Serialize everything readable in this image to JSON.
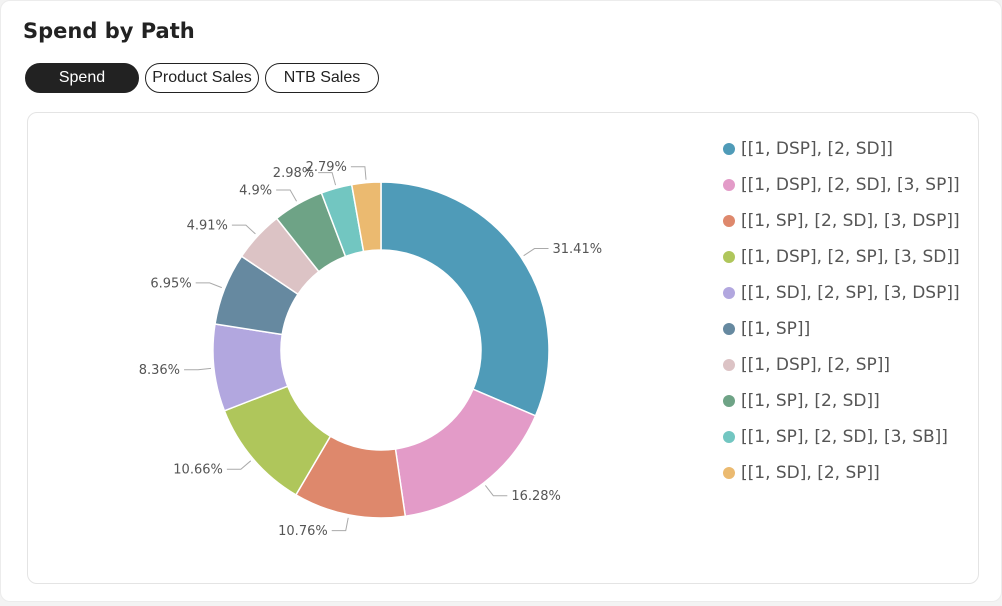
{
  "title": "Spend by Path",
  "tabs": [
    {
      "label": "Spend",
      "active": true
    },
    {
      "label": "Product Sales",
      "active": false
    },
    {
      "label": "NTB Sales",
      "active": false
    }
  ],
  "chart_data": {
    "type": "pie",
    "style": "donut",
    "title": "",
    "legend_position": "right",
    "categories": [
      "[[1, DSP], [2, SD]]",
      "[[1, DSP], [2, SD], [3, SP]]",
      "[[1, SP], [2, SD], [3, DSP]]",
      "[[1, DSP], [2, SP], [3, SD]]",
      "[[1, SD], [2, SP], [3, DSP]]",
      "[[1, SP]]",
      "[[1, DSP], [2, SP]]",
      "[[1, SP], [2, SD]]",
      "[[1, SP], [2, SD], [3, SB]]",
      "[[1, SD], [2, SP]]"
    ],
    "values": [
      31.41,
      16.28,
      10.76,
      10.66,
      8.36,
      6.95,
      4.91,
      4.9,
      2.98,
      2.79
    ],
    "labels": [
      "31.41%",
      "16.28%",
      "10.76%",
      "10.66%",
      "8.36%",
      "6.95%",
      "4.91%",
      "4.9%",
      "2.98%",
      "2.79%"
    ],
    "colors": [
      "#4f9bb8",
      "#e39bc8",
      "#de886c",
      "#afc65b",
      "#b2a7df",
      "#6689a0",
      "#dcc3c5",
      "#6ea386",
      "#72c6c1",
      "#ebba70"
    ]
  }
}
